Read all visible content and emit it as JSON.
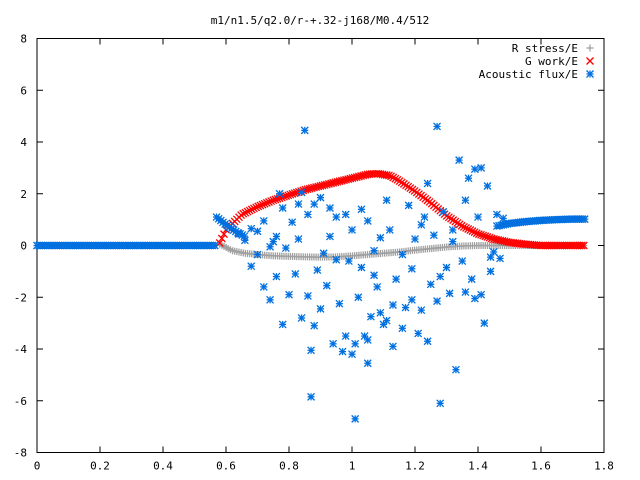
{
  "chart_data": {
    "type": "scatter",
    "title": "m1/n1.5/q2.0/r-+.32-j168/M0.4/512",
    "xlabel": "",
    "ylabel": "",
    "xlim": [
      0,
      1.8
    ],
    "ylim": [
      -8,
      8
    ],
    "xticks": [
      "0",
      "0.2",
      "0.4",
      "0.6",
      "0.8",
      "1",
      "1.2",
      "1.4",
      "1.6",
      "1.8"
    ],
    "yticks": [
      "8",
      "6",
      "4",
      "2",
      "0",
      "-2",
      "-4",
      "-6",
      "-8"
    ],
    "grid": false,
    "legend_position": "top-right",
    "series": [
      {
        "name": "R stress/E",
        "color": "#a0a0a0",
        "marker": "plus",
        "segments": [
          {
            "x_start": 0.58,
            "x_end": 1.74,
            "points": [
              [
                0.58,
                0.05
              ],
              [
                0.62,
                -0.2
              ],
              [
                0.66,
                -0.3
              ],
              [
                0.7,
                -0.35
              ],
              [
                0.75,
                -0.4
              ],
              [
                0.8,
                -0.42
              ],
              [
                0.85,
                -0.44
              ],
              [
                0.9,
                -0.45
              ],
              [
                0.95,
                -0.44
              ],
              [
                1.0,
                -0.4
              ],
              [
                1.05,
                -0.35
              ],
              [
                1.1,
                -0.3
              ],
              [
                1.15,
                -0.25
              ],
              [
                1.2,
                -0.18
              ],
              [
                1.25,
                -0.12
              ],
              [
                1.3,
                -0.06
              ],
              [
                1.35,
                -0.02
              ],
              [
                1.4,
                0.0
              ],
              [
                1.45,
                0.0
              ],
              [
                1.5,
                0.0
              ],
              [
                1.74,
                0.0
              ]
            ]
          }
        ]
      },
      {
        "name": "G work/E",
        "color": "#ff0000",
        "marker": "cross",
        "segments": [
          {
            "x_start": 0.58,
            "x_end": 1.74,
            "points": [
              [
                0.58,
                0.1
              ],
              [
                0.6,
                0.6
              ],
              [
                0.65,
                1.2
              ],
              [
                0.7,
                1.5
              ],
              [
                0.75,
                1.75
              ],
              [
                0.8,
                1.95
              ],
              [
                0.85,
                2.15
              ],
              [
                0.9,
                2.3
              ],
              [
                0.95,
                2.45
              ],
              [
                1.0,
                2.6
              ],
              [
                1.05,
                2.75
              ],
              [
                1.08,
                2.78
              ],
              [
                1.12,
                2.7
              ],
              [
                1.15,
                2.5
              ],
              [
                1.2,
                2.1
              ],
              [
                1.25,
                1.65
              ],
              [
                1.3,
                1.15
              ],
              [
                1.35,
                0.75
              ],
              [
                1.4,
                0.45
              ],
              [
                1.45,
                0.25
              ],
              [
                1.5,
                0.12
              ],
              [
                1.55,
                0.05
              ],
              [
                1.6,
                0.0
              ],
              [
                1.74,
                0.0
              ]
            ]
          }
        ]
      },
      {
        "name": "Acoustic flux/E",
        "color": "#0070e0",
        "marker": "star",
        "segments": [
          {
            "x_start": 0.0,
            "x_end": 0.57,
            "points": [
              [
                0.0,
                0.0
              ],
              [
                0.57,
                0.0
              ]
            ]
          },
          {
            "x_start": 0.57,
            "x_end": 0.66,
            "points": [
              [
                0.57,
                1.1
              ],
              [
                0.6,
                0.8
              ],
              [
                0.63,
                0.55
              ],
              [
                0.66,
                0.35
              ]
            ]
          },
          {
            "x_start": 1.46,
            "x_end": 1.74,
            "points": [
              [
                1.46,
                0.75
              ],
              [
                1.5,
                0.85
              ],
              [
                1.55,
                0.92
              ],
              [
                1.6,
                0.97
              ],
              [
                1.65,
                1.0
              ],
              [
                1.7,
                1.02
              ],
              [
                1.74,
                1.02
              ]
            ]
          }
        ],
        "scatter_points": [
          [
            0.85,
            4.45
          ],
          [
            1.27,
            4.6
          ],
          [
            0.78,
            1.45
          ],
          [
            0.81,
            0.9
          ],
          [
            0.83,
            1.6
          ],
          [
            0.86,
            1.2
          ],
          [
            0.88,
            1.6
          ],
          [
            0.9,
            1.85
          ],
          [
            0.93,
            1.45
          ],
          [
            0.95,
            1.1
          ],
          [
            0.98,
            1.2
          ],
          [
            1.0,
            0.6
          ],
          [
            1.03,
            1.4
          ],
          [
            1.05,
            0.95
          ],
          [
            1.07,
            -0.2
          ],
          [
            1.09,
            0.3
          ],
          [
            1.12,
            0.6
          ],
          [
            1.16,
            -0.35
          ],
          [
            1.2,
            0.25
          ],
          [
            1.23,
            1.1
          ],
          [
            1.26,
            0.4
          ],
          [
            1.29,
            1.3
          ],
          [
            1.32,
            0.6
          ],
          [
            1.34,
            3.3
          ],
          [
            1.37,
            2.6
          ],
          [
            1.39,
            2.95
          ],
          [
            1.41,
            3.0
          ],
          [
            1.43,
            2.3
          ],
          [
            1.46,
            1.2
          ],
          [
            1.48,
            1.05
          ],
          [
            1.35,
            -0.6
          ],
          [
            1.38,
            -1.3
          ],
          [
            1.41,
            -1.9
          ],
          [
            1.44,
            -0.45
          ],
          [
            1.31,
            -1.85
          ],
          [
            1.28,
            -1.2
          ],
          [
            1.25,
            -1.5
          ],
          [
            1.22,
            -2.5
          ],
          [
            1.19,
            -2.1
          ],
          [
            1.16,
            -3.2
          ],
          [
            1.13,
            -2.3
          ],
          [
            1.1,
            -3.05
          ],
          [
            1.08,
            -1.6
          ],
          [
            1.06,
            -2.75
          ],
          [
            1.04,
            -3.5
          ],
          [
            1.02,
            -2.0
          ],
          [
            1.0,
            -4.2
          ],
          [
            0.98,
            -3.5
          ],
          [
            0.96,
            -2.25
          ],
          [
            0.94,
            -3.8
          ],
          [
            0.92,
            -1.55
          ],
          [
            0.9,
            -2.45
          ],
          [
            0.88,
            -3.1
          ],
          [
            0.86,
            -1.95
          ],
          [
            0.84,
            -2.8
          ],
          [
            0.82,
            -1.1
          ],
          [
            0.8,
            -1.9
          ],
          [
            0.78,
            -3.05
          ],
          [
            0.76,
            -1.2
          ],
          [
            0.74,
            -2.1
          ],
          [
            0.72,
            -1.6
          ],
          [
            0.7,
            -0.35
          ],
          [
            0.68,
            -0.8
          ],
          [
            0.75,
            0.15
          ],
          [
            0.79,
            -0.1
          ],
          [
            0.83,
            0.25
          ],
          [
            0.87,
            -4.05
          ],
          [
            0.91,
            -0.3
          ],
          [
            0.95,
            -0.55
          ],
          [
            0.99,
            -0.6
          ],
          [
            1.01,
            -3.8
          ],
          [
            1.03,
            -0.85
          ],
          [
            1.05,
            -3.65
          ],
          [
            1.07,
            -1.15
          ],
          [
            1.09,
            -2.6
          ],
          [
            1.11,
            -2.9
          ],
          [
            1.14,
            -1.3
          ],
          [
            1.17,
            -2.4
          ],
          [
            1.21,
            -3.4
          ],
          [
            1.24,
            -3.7
          ],
          [
            1.27,
            -2.15
          ],
          [
            1.3,
            -0.85
          ],
          [
            1.33,
            -4.8
          ],
          [
            1.36,
            -1.8
          ],
          [
            1.39,
            -2.05
          ],
          [
            1.42,
            -3.0
          ],
          [
            1.45,
            -0.25
          ],
          [
            1.28,
            -6.1
          ],
          [
            1.01,
            -6.7
          ],
          [
            0.87,
            -5.85
          ],
          [
            1.05,
            -4.55
          ],
          [
            1.13,
            -3.9
          ],
          [
            0.97,
            -4.1
          ],
          [
            0.89,
            -0.95
          ],
          [
            1.19,
            -0.9
          ],
          [
            1.24,
            2.4
          ],
          [
            1.36,
            1.75
          ],
          [
            1.18,
            1.55
          ],
          [
            0.76,
            0.35
          ],
          [
            0.72,
            0.95
          ],
          [
            0.7,
            0.55
          ],
          [
            0.66,
            0.2
          ],
          [
            0.64,
            0.45
          ],
          [
            0.68,
            0.65
          ],
          [
            0.74,
            -0.05
          ],
          [
            0.77,
            2.0
          ],
          [
            0.84,
            2.05
          ],
          [
            0.93,
            0.35
          ],
          [
            1.11,
            1.75
          ],
          [
            1.22,
            0.8
          ],
          [
            1.32,
            0.15
          ],
          [
            1.4,
            1.1
          ],
          [
            1.44,
            -1.0
          ],
          [
            1.47,
            -0.5
          ]
        ]
      }
    ]
  }
}
